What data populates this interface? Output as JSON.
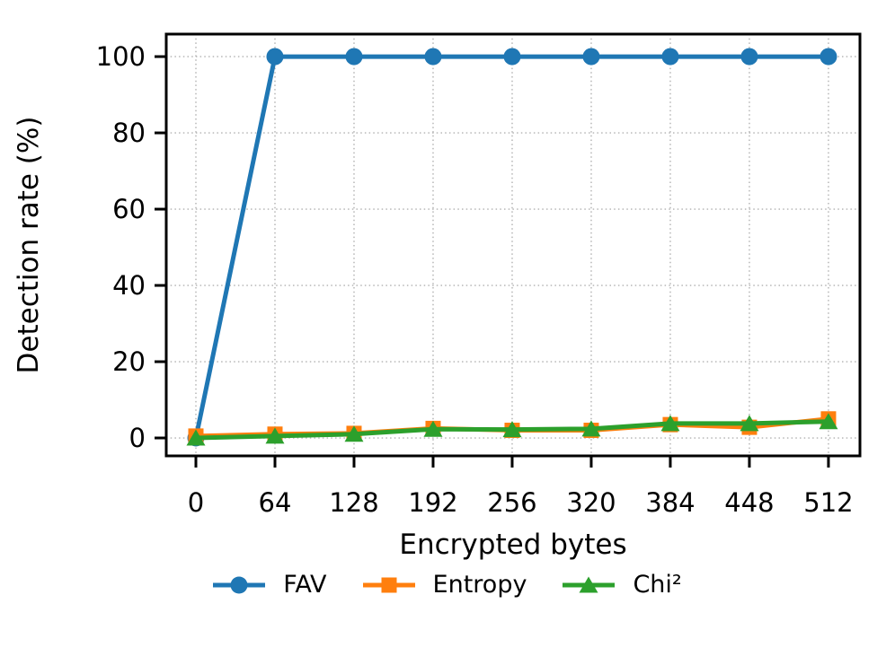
{
  "figure": {
    "background": "#ffffff",
    "text_color": "#000000",
    "grid_color": "#b0b0b0",
    "spine_color": "#000000"
  },
  "chart_data": {
    "type": "line",
    "title": "",
    "xlabel": "Encrypted bytes",
    "ylabel": "Detection rate (%)",
    "x": [
      0,
      64,
      128,
      192,
      256,
      320,
      384,
      448,
      512
    ],
    "x_ticks": [
      0,
      64,
      128,
      192,
      256,
      320,
      384,
      448,
      512
    ],
    "y_ticks": [
      0,
      20,
      40,
      60,
      80,
      100
    ],
    "xlim": [
      -24,
      537.5
    ],
    "ylim": [
      -4.7,
      105.9
    ],
    "grid": "dotted",
    "legend_position": "bottom-center",
    "series": [
      {
        "name": "FAV",
        "color": "#1f77b4",
        "marker": "circle",
        "values": [
          0,
          100,
          100,
          100,
          100,
          100,
          100,
          100,
          100
        ]
      },
      {
        "name": "Entropy",
        "color": "#ff7f0e",
        "marker": "square",
        "values": [
          0.5,
          1,
          1.2,
          2.5,
          2,
          2,
          3.5,
          2.8,
          5
        ]
      },
      {
        "name": "Chi²",
        "color": "#2ca02c",
        "marker": "triangle-up",
        "values": [
          0,
          0.5,
          1,
          2.3,
          2.2,
          2.4,
          3.8,
          3.8,
          4.3
        ]
      }
    ]
  }
}
